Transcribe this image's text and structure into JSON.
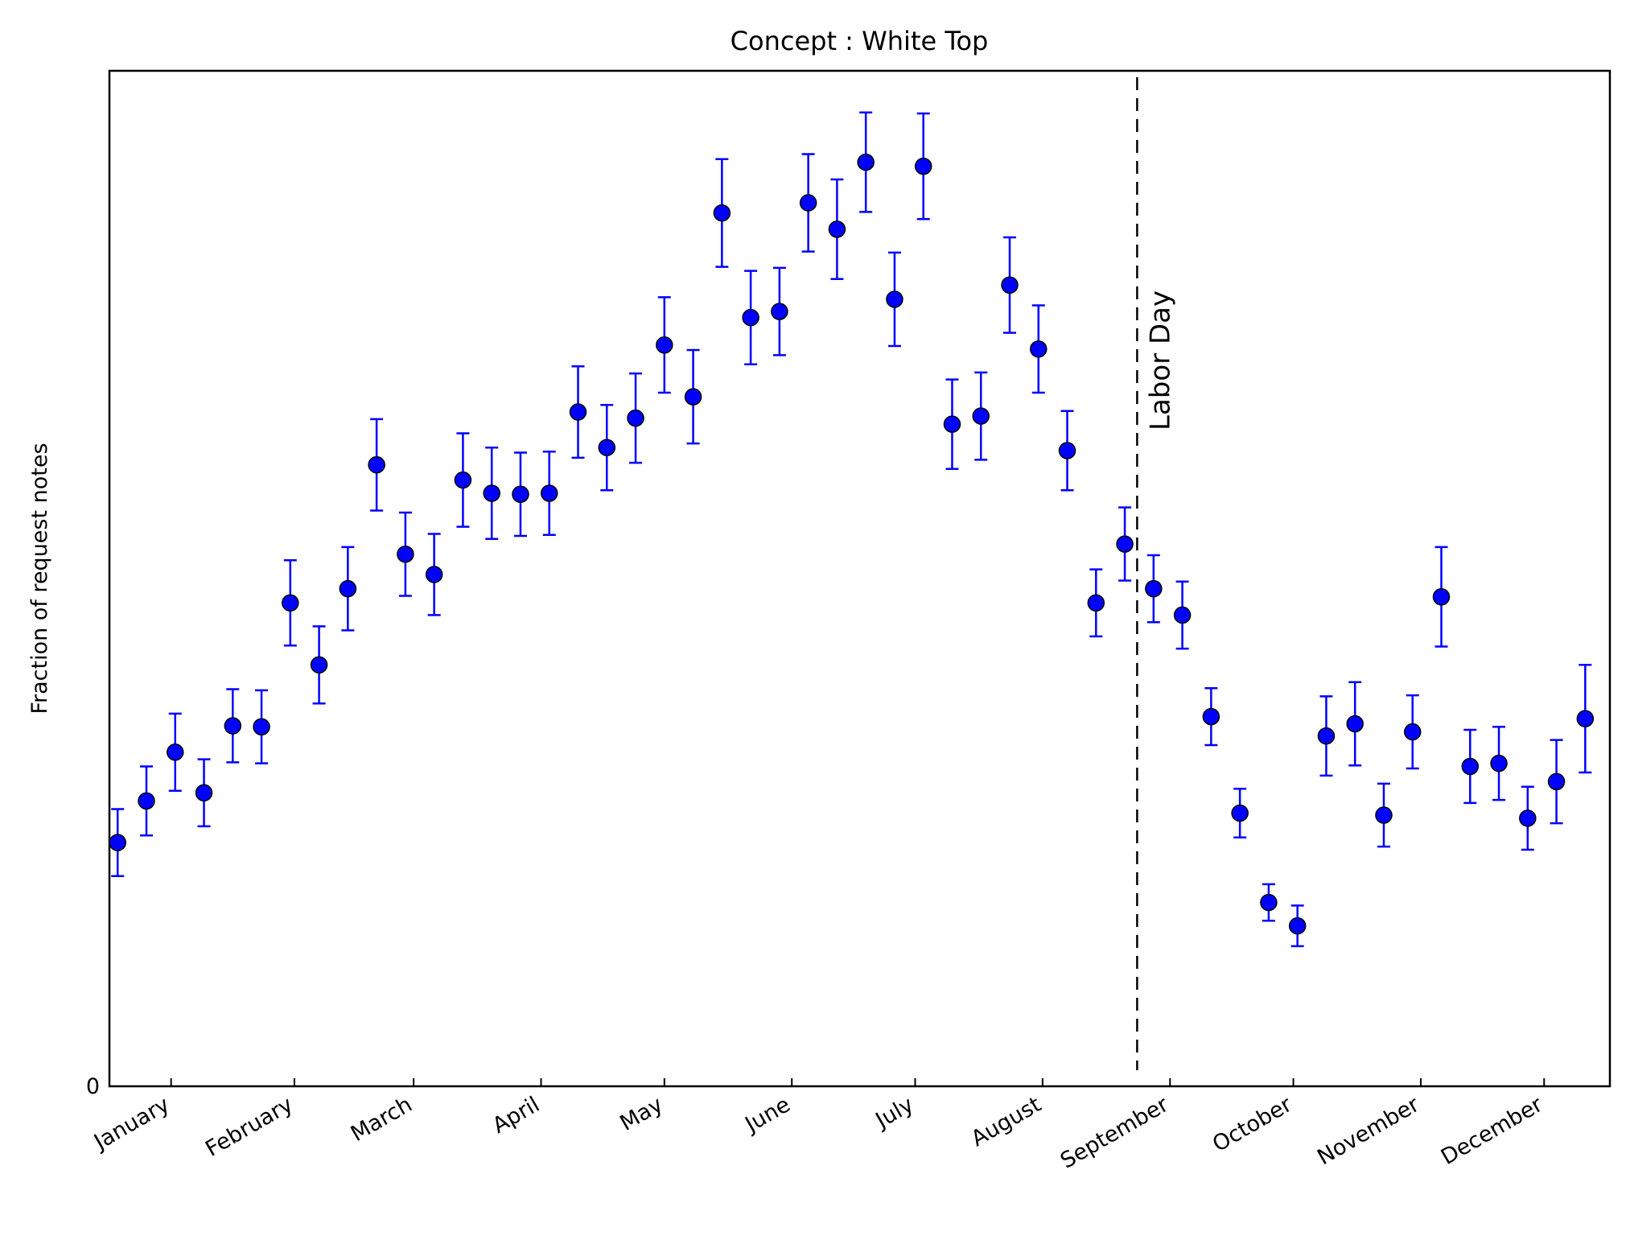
{
  "chart_data": {
    "type": "scatter",
    "title": "Concept : White Top",
    "ylabel": "Fraction of request notes",
    "x": [
      2,
      9,
      16,
      23,
      30,
      37,
      44,
      51,
      58,
      65,
      72,
      79,
      86,
      93,
      100,
      107,
      114,
      121,
      128,
      135,
      142,
      149,
      156,
      163,
      170,
      177,
      184,
      191,
      198,
      205,
      212,
      219,
      226,
      233,
      240,
      247,
      254,
      261,
      268,
      275,
      282,
      289,
      296,
      303,
      310,
      317,
      324,
      331,
      338,
      345,
      352,
      359
    ],
    "series": [
      {
        "color": "#0000ff",
        "values": [
          0.24,
          0.281,
          0.329,
          0.289,
          0.355,
          0.354,
          0.476,
          0.415,
          0.49,
          0.612,
          0.524,
          0.504,
          0.597,
          0.584,
          0.583,
          0.584,
          0.664,
          0.629,
          0.658,
          0.73,
          0.679,
          0.86,
          0.757,
          0.763,
          0.87,
          0.844,
          0.91,
          0.775,
          0.906,
          0.652,
          0.66,
          0.789,
          0.726,
          0.626,
          0.476,
          0.534,
          0.49,
          0.464,
          0.364,
          0.269,
          0.181,
          0.158,
          0.345,
          0.357,
          0.267,
          0.349,
          0.482,
          0.315,
          0.318,
          0.264,
          0.3,
          0.362
        ],
        "errors": [
          0.033,
          0.034,
          0.038,
          0.033,
          0.036,
          0.036,
          0.042,
          0.038,
          0.041,
          0.045,
          0.041,
          0.04,
          0.046,
          0.045,
          0.041,
          0.041,
          0.045,
          0.042,
          0.044,
          0.047,
          0.046,
          0.053,
          0.046,
          0.043,
          0.048,
          0.049,
          0.049,
          0.046,
          0.052,
          0.044,
          0.043,
          0.047,
          0.043,
          0.039,
          0.033,
          0.036,
          0.033,
          0.033,
          0.028,
          0.024,
          0.018,
          0.02,
          0.039,
          0.041,
          0.031,
          0.036,
          0.049,
          0.036,
          0.036,
          0.031,
          0.041,
          0.053
        ]
      }
    ],
    "xlim": [
      0,
      365
    ],
    "xticks": [
      {
        "value": 15,
        "label": "January"
      },
      {
        "value": 45,
        "label": "February"
      },
      {
        "value": 74,
        "label": "March"
      },
      {
        "value": 105,
        "label": "April"
      },
      {
        "value": 135,
        "label": "May"
      },
      {
        "value": 166,
        "label": "June"
      },
      {
        "value": 196,
        "label": "July"
      },
      {
        "value": 227,
        "label": "August"
      },
      {
        "value": 258,
        "label": "September"
      },
      {
        "value": 288,
        "label": "October"
      },
      {
        "value": 319,
        "label": "November"
      },
      {
        "value": 349,
        "label": "December"
      }
    ],
    "ylim": [
      0,
      1
    ],
    "yticks": [
      0
    ],
    "annotations": [
      {
        "x": 250,
        "text": "Labor Day"
      }
    ]
  }
}
